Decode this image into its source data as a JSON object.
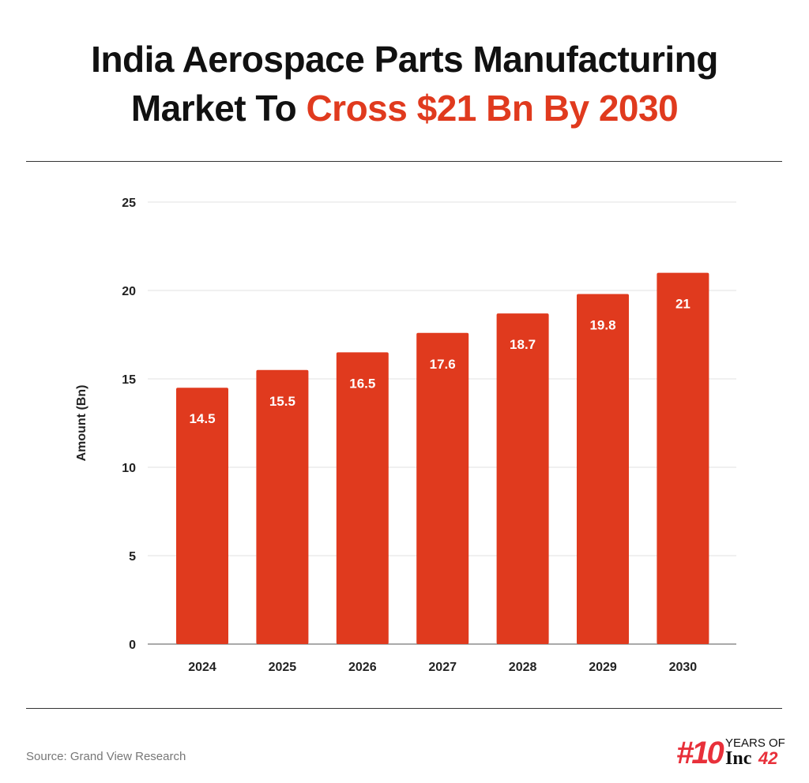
{
  "title": {
    "line1": "India Aerospace Parts Manufacturing",
    "line2_prefix": "Market To ",
    "line2_highlight": "Cross $21 Bn By 2030"
  },
  "source": "Source: Grand View Research",
  "logo": {
    "text": "#10 YEARS OF Inc42"
  },
  "colors": {
    "bar": "#E03A1E",
    "accent": "#E03A1E",
    "grid": "#e2e2e2"
  },
  "chart_data": {
    "type": "bar",
    "categories": [
      "2024",
      "2025",
      "2026",
      "2027",
      "2028",
      "2029",
      "2030"
    ],
    "values": [
      14.5,
      15.5,
      16.5,
      17.6,
      18.7,
      19.8,
      21
    ],
    "data_labels": [
      "14.5",
      "15.5",
      "16.5",
      "17.6",
      "18.7",
      "19.8",
      "21"
    ],
    "title": "",
    "xlabel": "",
    "ylabel": "Amount (Bn)",
    "ylim": [
      0,
      25
    ],
    "yticks": [
      "0",
      "5",
      "10",
      "15",
      "20",
      "25"
    ],
    "grid": true,
    "legend": "none"
  }
}
